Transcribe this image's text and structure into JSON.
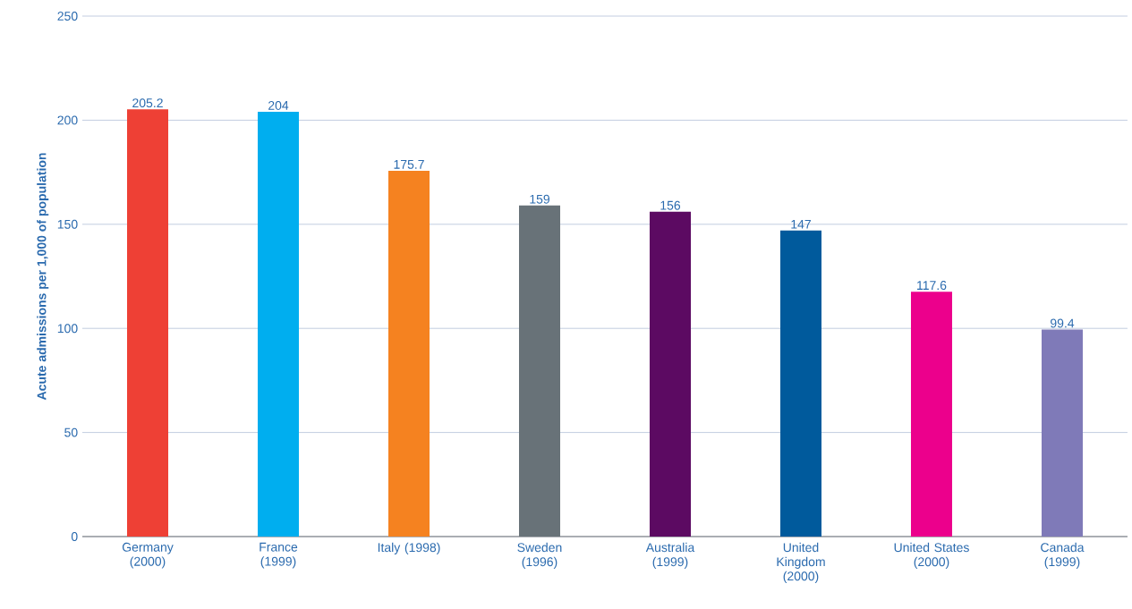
{
  "chart_data": {
    "type": "bar",
    "ylabel": "Acute admissions per 1,000 of population",
    "categories": [
      "Germany (2000)",
      "France (1999)",
      "Italy (1998)",
      "Sweden (1996)",
      "Australia (1999)",
      "United Kingdom (2000)",
      "United States (2000)",
      "Canada (1999)"
    ],
    "values": [
      205.2,
      204,
      175.7,
      159,
      156,
      147,
      117.6,
      99.4
    ],
    "colors": [
      "#ee4035",
      "#00aeef",
      "#f58220",
      "#687278",
      "#5c0a62",
      "#005a9c",
      "#ec008c",
      "#7f7ab8"
    ],
    "data_labels": true,
    "ylim": [
      0,
      250
    ],
    "yticks": [
      0,
      50,
      100,
      150,
      200,
      250
    ],
    "grid": "y"
  }
}
